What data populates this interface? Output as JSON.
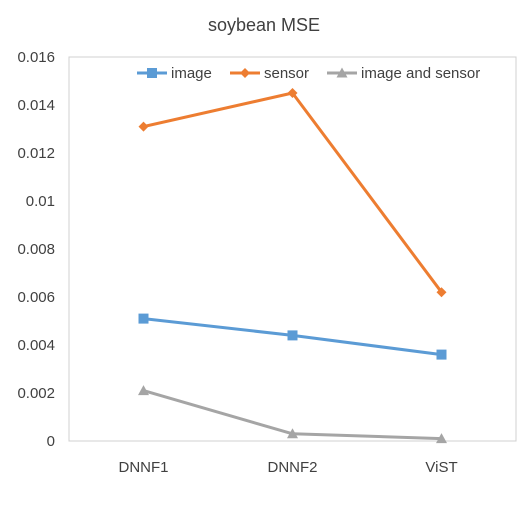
{
  "chart_data": {
    "type": "line",
    "title": "soybean MSE",
    "xlabel": "",
    "ylabel": "",
    "categories": [
      "DNNF1",
      "DNNF2",
      "ViST"
    ],
    "ylim": [
      0,
      0.016
    ],
    "yticks": [
      "0",
      "0.002",
      "0.004",
      "0.006",
      "0.008",
      "0.01",
      "0.012",
      "0.014",
      "0.016"
    ],
    "grid": false,
    "legend_position": "top-right",
    "series": [
      {
        "name": "image",
        "values": [
          0.0051,
          0.0044,
          0.0036
        ],
        "color": "#5B9BD5",
        "marker": "square"
      },
      {
        "name": "sensor",
        "values": [
          0.0131,
          0.0145,
          0.0062
        ],
        "color": "#ED7D31",
        "marker": "diamond"
      },
      {
        "name": "image and sensor",
        "values": [
          0.0021,
          0.0003,
          0.0001
        ],
        "color": "#A5A5A5",
        "marker": "triangle"
      }
    ]
  }
}
